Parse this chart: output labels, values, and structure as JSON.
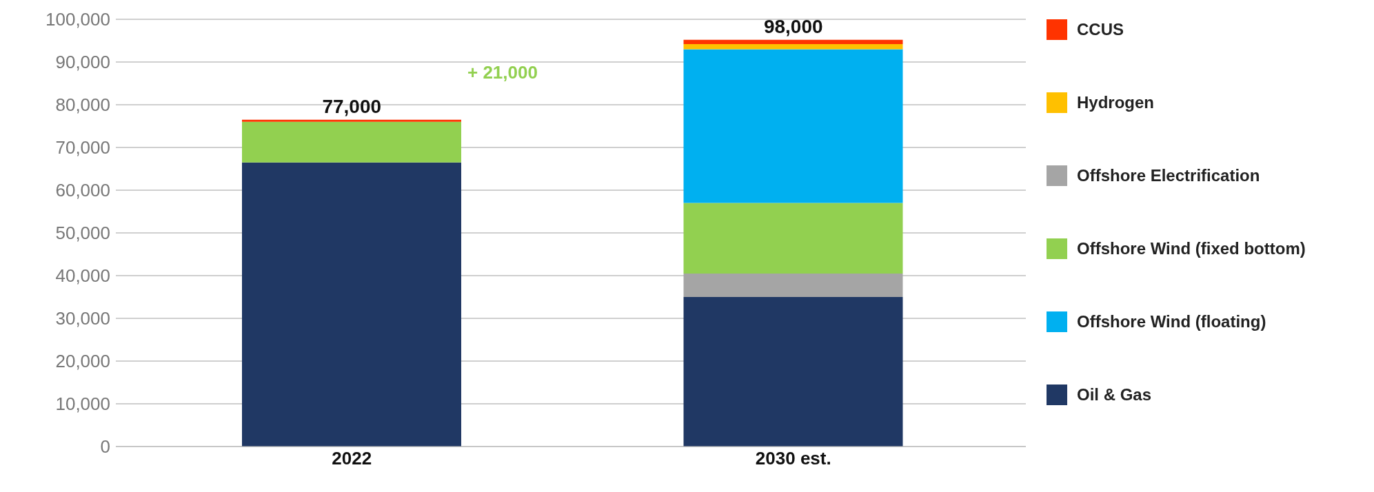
{
  "chart_data": {
    "type": "bar",
    "stacked": true,
    "categories": [
      "2022",
      "2030 est."
    ],
    "series": [
      {
        "name": "Oil & Gas",
        "color": "#203864",
        "values": [
          66500,
          35000
        ]
      },
      {
        "name": "Offshore Electrification",
        "color": "#a5a5a5",
        "values": [
          0,
          5500
        ]
      },
      {
        "name": "Offshore Wind (fixed bottom)",
        "color": "#92d050",
        "values": [
          9500,
          16500
        ]
      },
      {
        "name": "Offshore Wind (floating)",
        "color": "#00b0f0",
        "values": [
          0,
          36000
        ]
      },
      {
        "name": "Hydrogen",
        "color": "#ffc000",
        "values": [
          0,
          1200
        ]
      },
      {
        "name": "CCUS",
        "color": "#ff3300",
        "values": [
          500,
          1000
        ]
      }
    ],
    "annotations": [
      {
        "text": "77,000",
        "x": "2022",
        "y": 76500
      },
      {
        "text": "98,000",
        "x": "2030 est.",
        "y": 95200
      },
      "+ 21,000"
    ],
    "ylim": [
      0,
      100000
    ],
    "yticks": [
      0,
      {
        "value": 10000,
        "label": "10,000"
      },
      {
        "value": 20000,
        "label": "20,000"
      },
      {
        "value": 30000,
        "label": "30,000"
      },
      {
        "value": 40000,
        "label": "40,000"
      },
      {
        "value": 50000,
        "label": "50,000"
      },
      {
        "value": 60000,
        "label": "60,000"
      },
      {
        "value": 70000,
        "label": "70,000"
      },
      {
        "value": 80000,
        "label": "80,000"
      },
      {
        "value": 90000,
        "label": "90,000"
      },
      {
        "value": 100000,
        "label": "100,000"
      }
    ],
    "grid": "y",
    "legend": "right"
  }
}
